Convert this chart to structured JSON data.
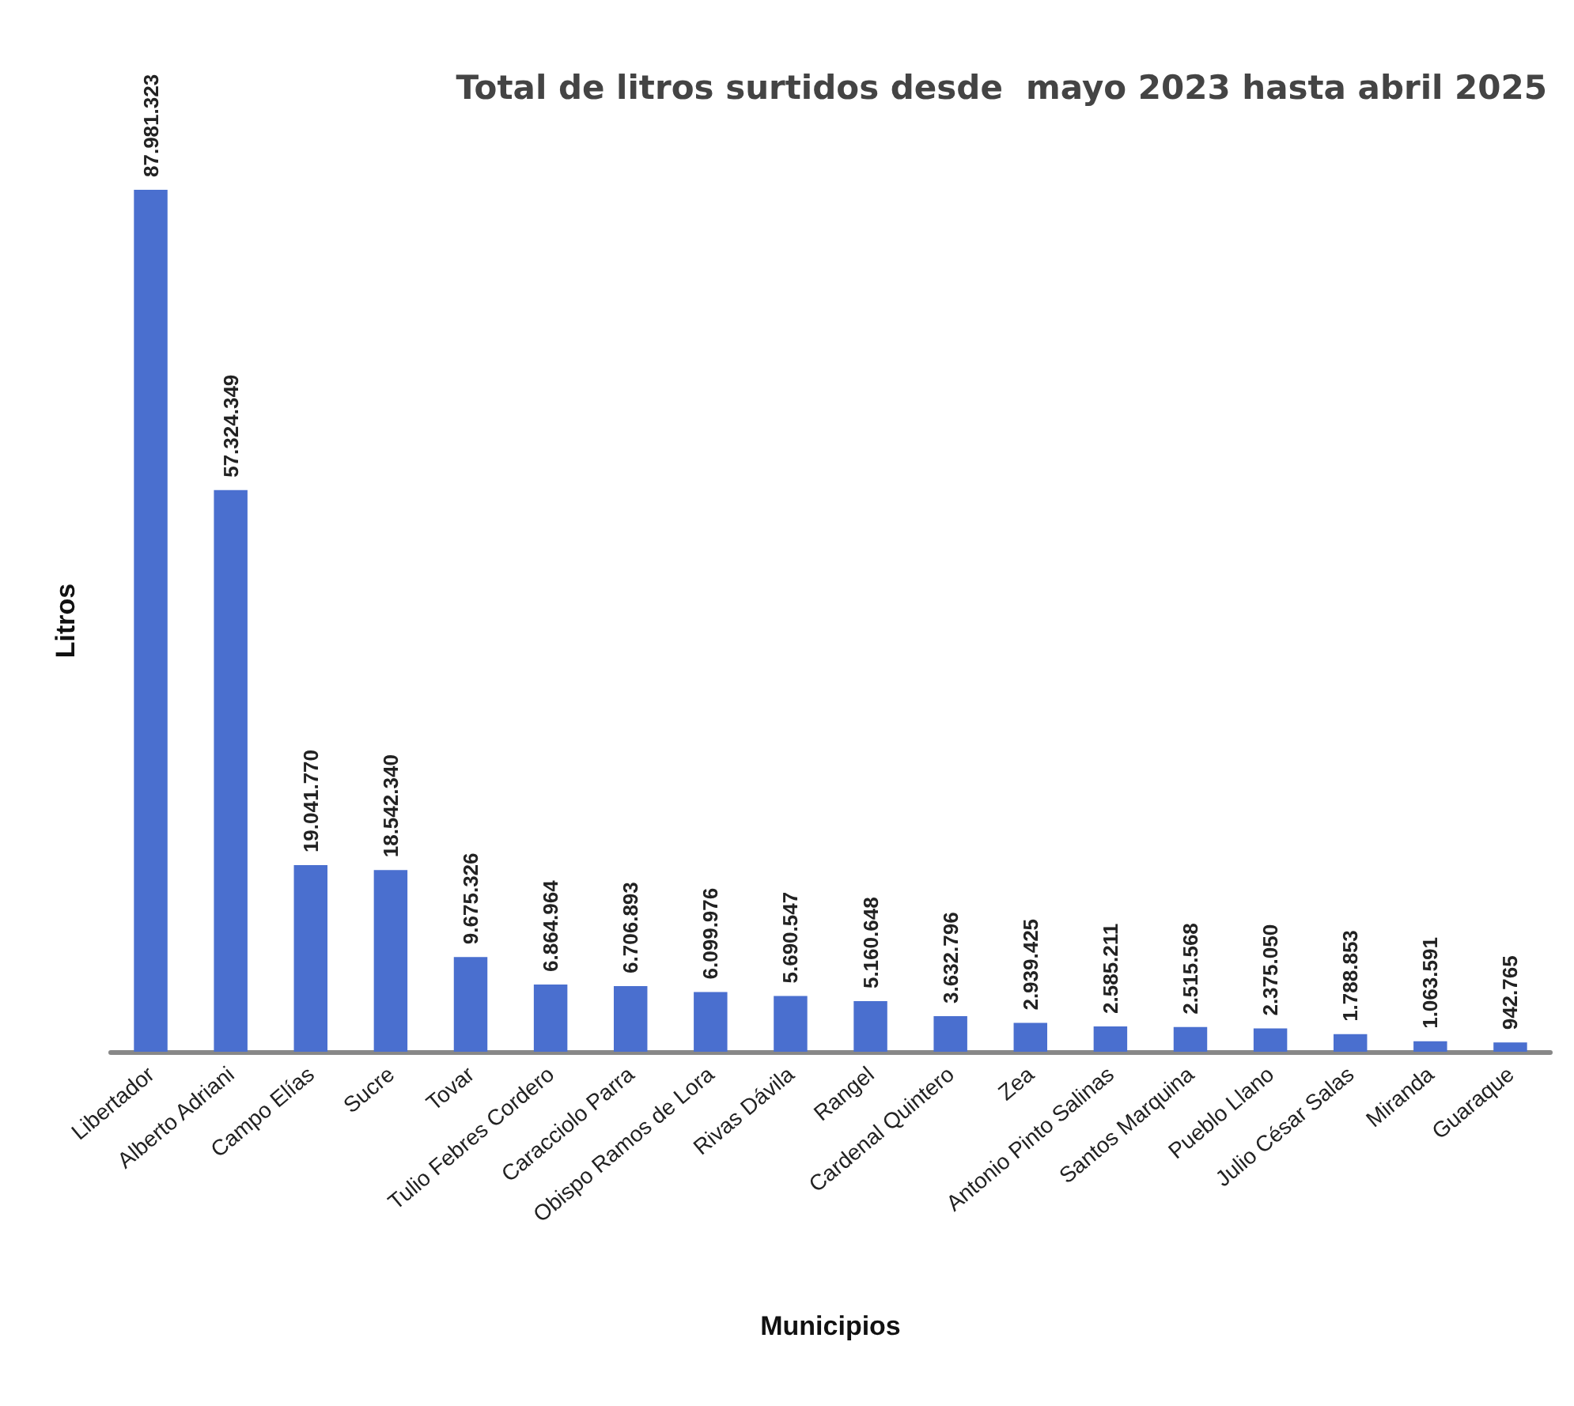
{
  "chart_data": {
    "type": "bar",
    "title": "Total de litros surtidos desde  mayo 2023 hasta abril 2025",
    "xlabel": "Municipios",
    "ylabel": "Litros",
    "categories": [
      "Libertador",
      "Alberto Adriani",
      "Campo Elías",
      "Sucre",
      "Tovar",
      "Tulio Febres Cordero",
      "Caracciolo Parra",
      "Obispo Ramos de Lora",
      "Rivas Dávila",
      "Rangel",
      "Cardenal Quintero",
      "Zea",
      "Antonio Pinto Salinas",
      "Santos Marquina",
      "Pueblo Llano",
      "Julio César Salas",
      "Miranda",
      "Guaraque"
    ],
    "values": [
      87981323,
      57324349,
      19041770,
      18542340,
      9675326,
      6864964,
      6706893,
      6099976,
      5690547,
      5160648,
      3632796,
      2939425,
      2585211,
      2515568,
      2375050,
      1788853,
      1063591,
      942765
    ],
    "value_labels": [
      "87.981.323",
      "57.324.349",
      "19.041.770",
      "18.542.340",
      "9.675.326",
      "6.864.964",
      "6.706.893",
      "6.099.976",
      "5.690.547",
      "5.160.648",
      "3.632.796",
      "2.939.425",
      "2.585.211",
      "2.515.568",
      "2.375.050",
      "1.788.853",
      "1.063.591",
      "942.765"
    ],
    "color": "#4a6fcf",
    "tick_labels": "x",
    "grid": false
  }
}
